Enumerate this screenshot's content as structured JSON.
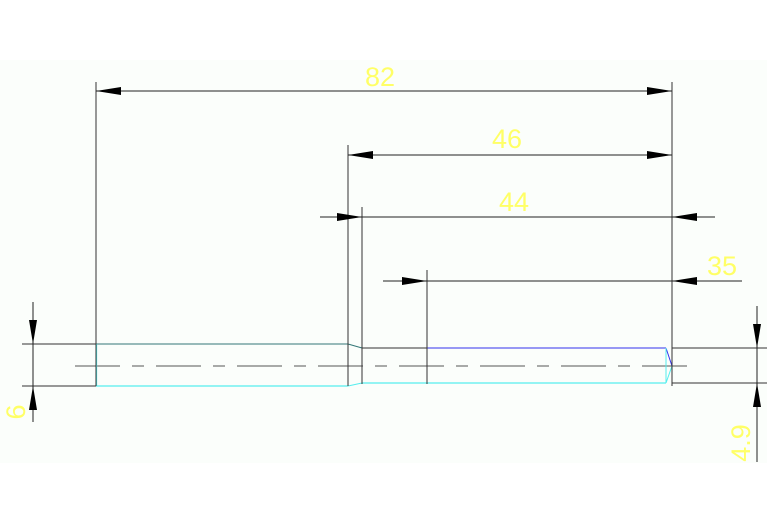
{
  "drawing": {
    "background": "#fbfefb",
    "colors": {
      "dimension_text": "#ffff66",
      "dimension_line": "#000000",
      "part_outline_cyan": "#55eeee",
      "part_outline_blue": "#3333ee",
      "part_outline_teal": "#337777"
    },
    "dimensions": {
      "overall_length": "82",
      "length_46": "46",
      "length_44": "44",
      "length_35": "35",
      "diameter_large": "6",
      "diameter_small": "4.9"
    }
  }
}
